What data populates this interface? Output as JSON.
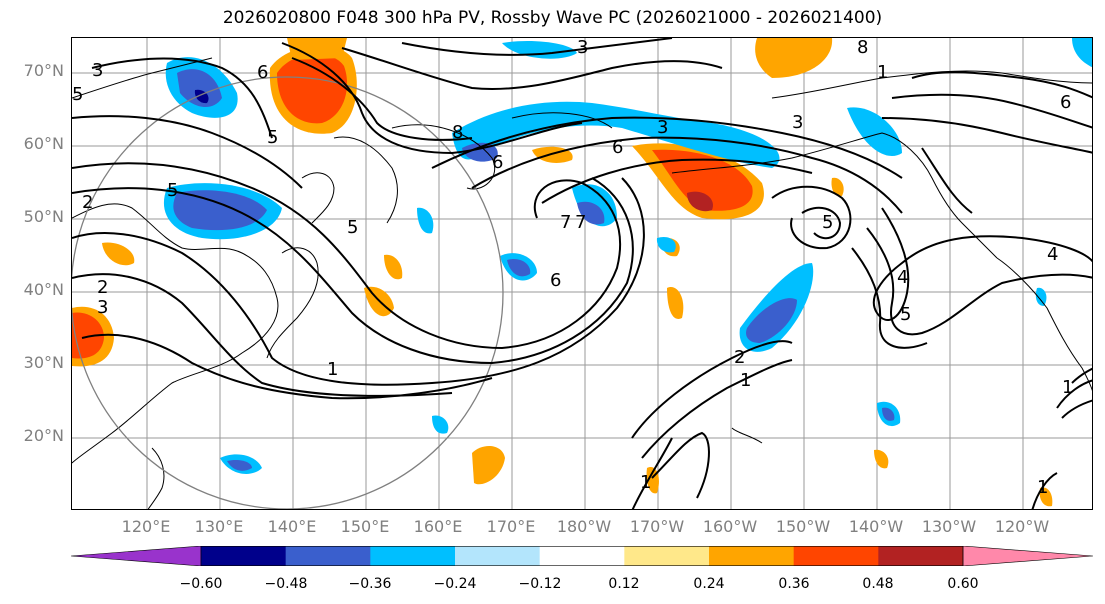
{
  "title": "2026020800 F048 300 hPa PV, Rossby Wave PC (2026021000 - 2026021400)",
  "lat_labels": [
    "70°N",
    "60°N",
    "50°N",
    "40°N",
    "30°N",
    "20°N"
  ],
  "lon_labels": [
    "120°E",
    "130°E",
    "140°E",
    "150°E",
    "160°E",
    "170°E",
    "180°W",
    "170°W",
    "160°W",
    "150°W",
    "140°W",
    "130°W",
    "120°W"
  ],
  "colorbar": {
    "tick_labels": [
      "−0.60",
      "−0.48",
      "−0.36",
      "−0.24",
      "−0.12",
      "0.12",
      "0.24",
      "0.36",
      "0.48",
      "0.60"
    ],
    "colors": [
      "#9933cc",
      "#00008b",
      "#3a5fcd",
      "#00bfff",
      "#b3e5fc",
      "#ffffff",
      "#ffe88a",
      "#ffa500",
      "#ff4500",
      "#b22222",
      "#ff88aa"
    ]
  },
  "contour_labels": [
    "1",
    "2",
    "3",
    "4",
    "5",
    "6",
    "7",
    "8",
    "1",
    "5",
    "1",
    "3",
    "6",
    "5",
    "5",
    "7",
    "6",
    "2",
    "1",
    "3",
    "2",
    "6",
    "4",
    "5",
    "5",
    "8",
    "1",
    "6",
    "3",
    "1",
    "3"
  ]
}
